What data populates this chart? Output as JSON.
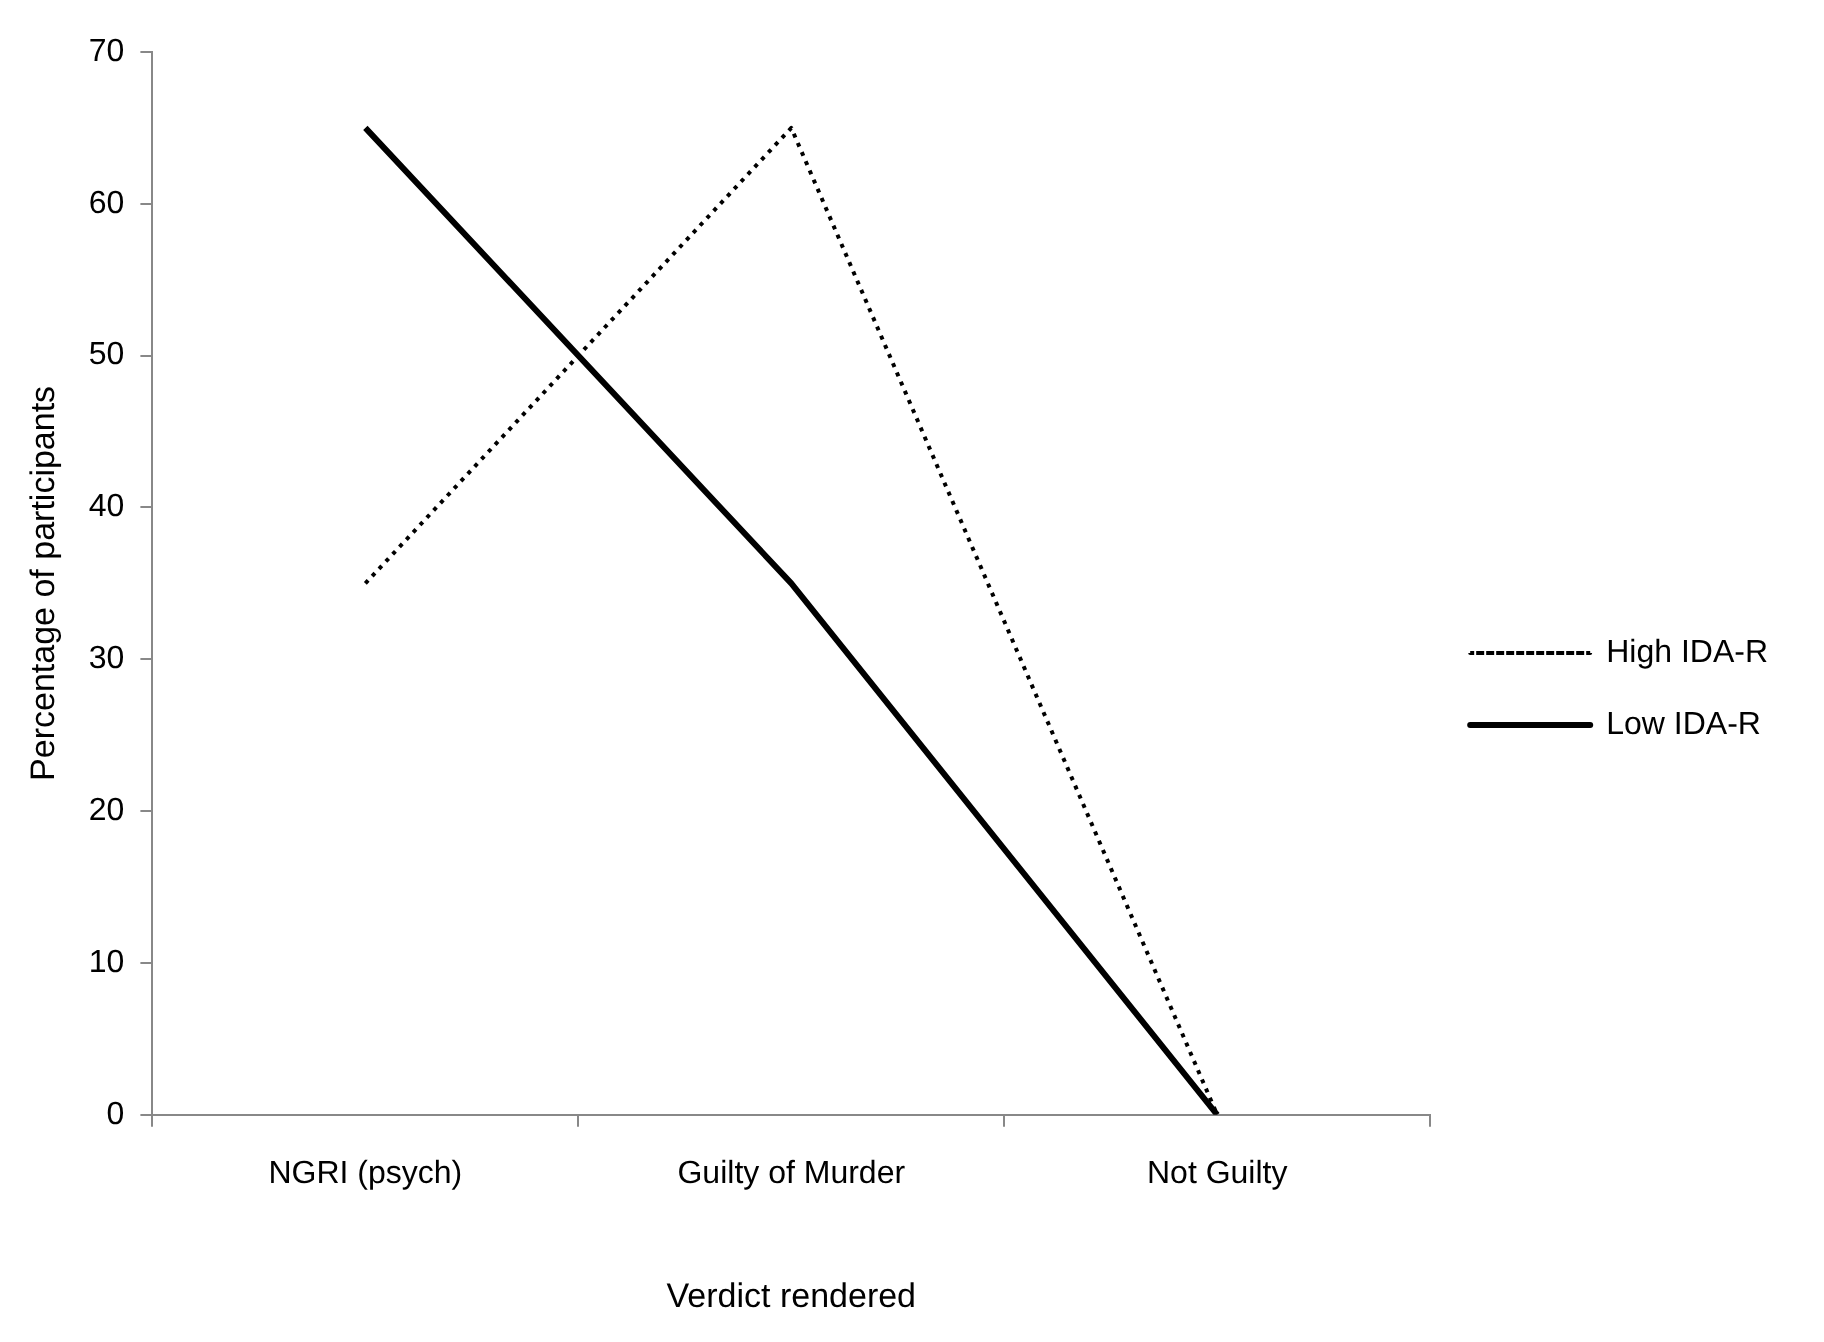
{
  "chart_data": {
    "type": "line",
    "xlabel": "Verdict rendered",
    "ylabel": "Percentage of participants",
    "categories": [
      "NGRI (psych)",
      "Guilty of Murder",
      "Not Guilty"
    ],
    "ylim": [
      0,
      70
    ],
    "yticks": [
      0,
      10,
      20,
      30,
      40,
      50,
      60,
      70
    ],
    "legend": "right",
    "marker": "none",
    "series": [
      {
        "name": "High IDA-R",
        "color": "#000000",
        "line_style": "dotted",
        "values": [
          35,
          65,
          0
        ]
      },
      {
        "name": "Low IDA-R",
        "color": "#000000",
        "line_style": "solid",
        "values": [
          65,
          35,
          0
        ]
      }
    ]
  }
}
